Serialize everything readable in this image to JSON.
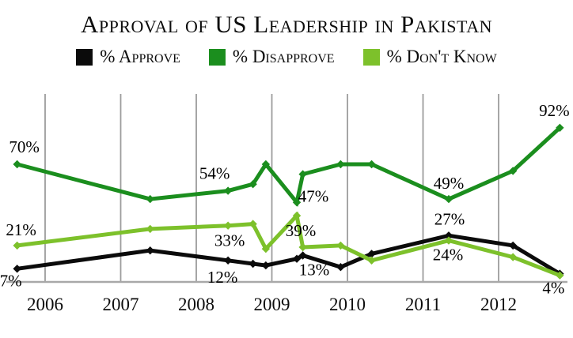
{
  "title": "Approval of US Leadership in Pakistan",
  "chart_data": {
    "type": "line",
    "title": "Approval of US Leadership in Pakistan",
    "xlabel": "",
    "ylabel": "",
    "unit": "%",
    "x_ticks": [
      "2006",
      "2007",
      "2008",
      "2009",
      "2010",
      "2011",
      "2012"
    ],
    "x_range": [
      2005.3,
      2013.0
    ],
    "y_range": [
      0,
      112
    ],
    "y_axis_shown": false,
    "grid": {
      "vertical": true,
      "horizontal": false,
      "color": "#9c9c9c"
    },
    "axis_color": "#a8a8a8",
    "text_color": "#0d0d0d",
    "legend_position": "top-center",
    "series": [
      {
        "id": "approve",
        "name": "% Approve",
        "color": "#0b0b0b",
        "points": [
          {
            "x": 2005.63,
            "v": 7,
            "label": "7%",
            "ldx": -8,
            "ldy": 22
          },
          {
            "x": 2007.39,
            "v": 18
          },
          {
            "x": 2008.42,
            "v": 12,
            "label": "12%",
            "ldx": -7,
            "ldy": 28
          },
          {
            "x": 2008.75,
            "v": 10
          },
          {
            "x": 2008.92,
            "v": 9
          },
          {
            "x": 2009.33,
            "v": 13,
            "label": "13%",
            "ldx": 22,
            "ldy": 21
          },
          {
            "x": 2009.41,
            "v": 15
          },
          {
            "x": 2009.91,
            "v": 8
          },
          {
            "x": 2010.32,
            "v": 16
          },
          {
            "x": 2011.34,
            "v": 27,
            "label": "27%",
            "ldx": 1,
            "ldy": -14
          },
          {
            "x": 2012.19,
            "v": 21
          },
          {
            "x": 2012.81,
            "v": 4,
            "label": "4%",
            "ldx": -8,
            "ldy": 25
          }
        ]
      },
      {
        "id": "disapprove",
        "name": "% Disapprove",
        "color": "#1b8e1e",
        "points": [
          {
            "x": 2005.63,
            "v": 70,
            "label": "70%",
            "ldx": 9,
            "ldy": -15
          },
          {
            "x": 2007.39,
            "v": 49
          },
          {
            "x": 2008.42,
            "v": 54,
            "label": "54%",
            "ldx": -17,
            "ldy": -15
          },
          {
            "x": 2008.75,
            "v": 58
          },
          {
            "x": 2008.92,
            "v": 70
          },
          {
            "x": 2009.33,
            "v": 47,
            "label": "47%",
            "ldx": 21,
            "ldy": -1
          },
          {
            "x": 2009.41,
            "v": 64
          },
          {
            "x": 2009.91,
            "v": 70
          },
          {
            "x": 2010.32,
            "v": 70
          },
          {
            "x": 2011.34,
            "v": 49,
            "label": "49%",
            "ldx": 0,
            "ldy": -13
          },
          {
            "x": 2012.19,
            "v": 66
          },
          {
            "x": 2012.81,
            "v": 92,
            "label": "92%",
            "ldx": -7,
            "ldy": -15
          }
        ]
      },
      {
        "id": "dont-know",
        "name": "% Don't Know",
        "color": "#7dc12b",
        "points": [
          {
            "x": 2005.63,
            "v": 21,
            "label": "21%",
            "ldx": 5,
            "ldy": -13
          },
          {
            "x": 2007.39,
            "v": 31
          },
          {
            "x": 2008.42,
            "v": 33,
            "label": "33%",
            "ldx": 2,
            "ldy": 26
          },
          {
            "x": 2008.75,
            "v": 34
          },
          {
            "x": 2008.92,
            "v": 19
          },
          {
            "x": 2009.33,
            "v": 39,
            "label": "39%",
            "ldx": 5,
            "ldy": 26
          },
          {
            "x": 2009.41,
            "v": 20
          },
          {
            "x": 2009.91,
            "v": 21
          },
          {
            "x": 2010.32,
            "v": 12
          },
          {
            "x": 2011.34,
            "v": 24,
            "label": "24%",
            "ldx": -1,
            "ldy": 25
          },
          {
            "x": 2012.19,
            "v": 14
          },
          {
            "x": 2012.81,
            "v": 3
          }
        ]
      }
    ]
  }
}
